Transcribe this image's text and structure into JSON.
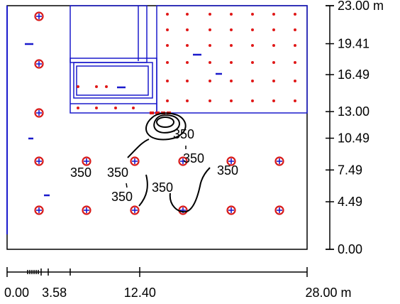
{
  "plan": {
    "units": "m",
    "width_m": 28.0,
    "height_m": 23.0,
    "x_ticks": [
      {
        "value": 0.0,
        "label": "0.00"
      },
      {
        "value": 3.58,
        "label": "3.58"
      },
      {
        "value": 12.4,
        "label": "12.40"
      },
      {
        "value": 28.0,
        "label": "28.00 m"
      }
    ],
    "y_ticks": [
      {
        "value": 23.0,
        "label": "23.00 m"
      },
      {
        "value": 19.41,
        "label": "19.41"
      },
      {
        "value": 16.49,
        "label": "16.49"
      },
      {
        "value": 13.0,
        "label": "13.00"
      },
      {
        "value": 10.49,
        "label": "10.49"
      },
      {
        "value": 7.49,
        "label": "7.49"
      },
      {
        "value": 4.49,
        "label": "4.49"
      },
      {
        "value": 0.0,
        "label": "0.00"
      }
    ],
    "isolines": {
      "value_label": "350",
      "count": 6
    },
    "colors": {
      "outline": "#000000",
      "rooms": "#1a1acc",
      "luminaire_ring": "#d81a1a",
      "luminaire_cross": "#1a1acc",
      "point": "#e01818",
      "isoline": "#000000"
    }
  }
}
